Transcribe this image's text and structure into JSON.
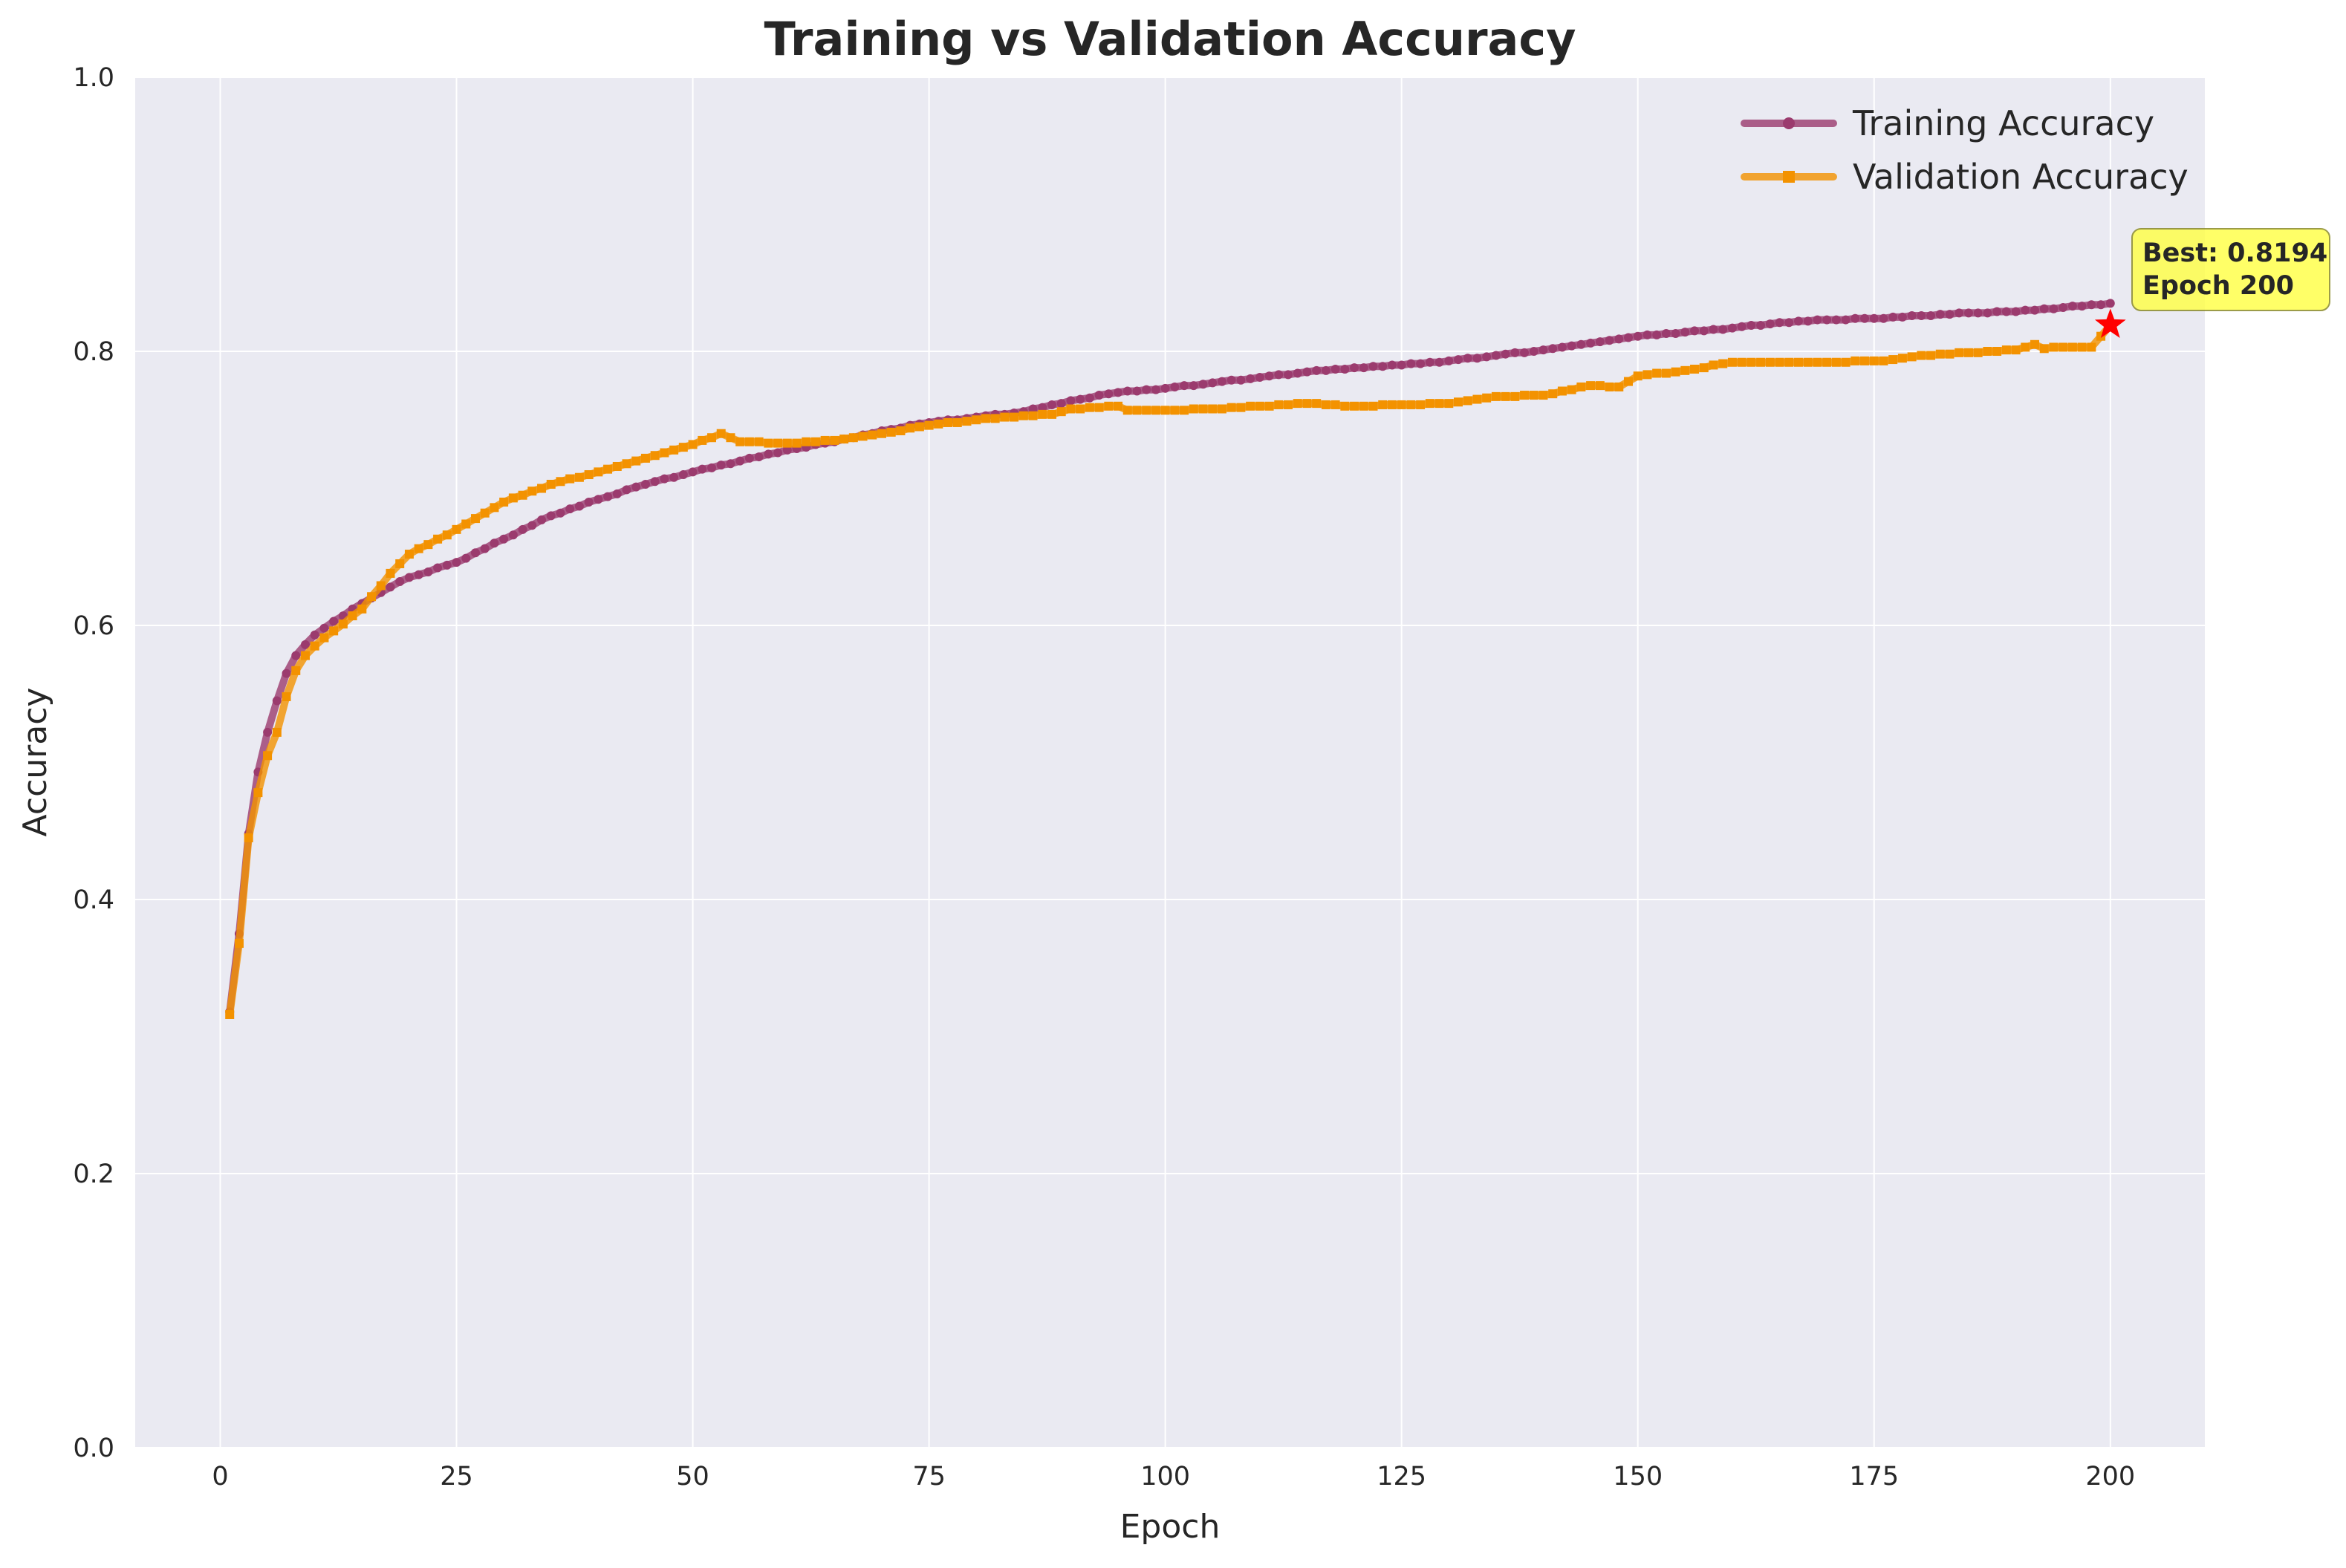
{
  "chart_data": {
    "type": "line",
    "title": "Training vs Validation Accuracy",
    "xlabel": "Epoch",
    "ylabel": "Accuracy",
    "xlim": [
      -9,
      210
    ],
    "ylim": [
      0,
      1.0
    ],
    "xticks": [
      0,
      25,
      50,
      75,
      100,
      125,
      150,
      175,
      200
    ],
    "yticks": [
      0.0,
      0.2,
      0.4,
      0.6,
      0.8,
      1.0
    ],
    "grid": true,
    "legend_position": "top-right",
    "series": [
      {
        "name": "Training Accuracy",
        "color": "#9b3b6e",
        "marker": "circle",
        "keypoints": [
          [
            1,
            0.318
          ],
          [
            2,
            0.375
          ],
          [
            3,
            0.448
          ],
          [
            4,
            0.493
          ],
          [
            5,
            0.522
          ],
          [
            6,
            0.545
          ],
          [
            7,
            0.565
          ],
          [
            8,
            0.578
          ],
          [
            9,
            0.586
          ],
          [
            10,
            0.593
          ],
          [
            12,
            0.603
          ],
          [
            15,
            0.616
          ],
          [
            18,
            0.628
          ],
          [
            20,
            0.635
          ],
          [
            25,
            0.646
          ],
          [
            30,
            0.663
          ],
          [
            35,
            0.68
          ],
          [
            40,
            0.692
          ],
          [
            45,
            0.703
          ],
          [
            50,
            0.712
          ],
          [
            55,
            0.72
          ],
          [
            60,
            0.728
          ],
          [
            65,
            0.734
          ],
          [
            70,
            0.742
          ],
          [
            75,
            0.748
          ],
          [
            80,
            0.752
          ],
          [
            85,
            0.756
          ],
          [
            90,
            0.764
          ],
          [
            95,
            0.77
          ],
          [
            100,
            0.773
          ],
          [
            105,
            0.777
          ],
          [
            110,
            0.781
          ],
          [
            115,
            0.785
          ],
          [
            120,
            0.788
          ],
          [
            125,
            0.79
          ],
          [
            130,
            0.793
          ],
          [
            135,
            0.797
          ],
          [
            140,
            0.801
          ],
          [
            145,
            0.806
          ],
          [
            150,
            0.811
          ],
          [
            155,
            0.814
          ],
          [
            160,
            0.817
          ],
          [
            165,
            0.821
          ],
          [
            170,
            0.823
          ],
          [
            175,
            0.824
          ],
          [
            180,
            0.826
          ],
          [
            185,
            0.828
          ],
          [
            190,
            0.829
          ],
          [
            195,
            0.832
          ],
          [
            200,
            0.835
          ]
        ]
      },
      {
        "name": "Validation Accuracy",
        "color": "#f39200",
        "marker": "square",
        "keypoints": [
          [
            1,
            0.316
          ],
          [
            2,
            0.368
          ],
          [
            3,
            0.445
          ],
          [
            4,
            0.478
          ],
          [
            5,
            0.505
          ],
          [
            6,
            0.522
          ],
          [
            7,
            0.548
          ],
          [
            8,
            0.567
          ],
          [
            9,
            0.578
          ],
          [
            10,
            0.585
          ],
          [
            12,
            0.596
          ],
          [
            15,
            0.612
          ],
          [
            18,
            0.638
          ],
          [
            20,
            0.652
          ],
          [
            25,
            0.67
          ],
          [
            30,
            0.69
          ],
          [
            35,
            0.703
          ],
          [
            40,
            0.712
          ],
          [
            45,
            0.722
          ],
          [
            50,
            0.732
          ],
          [
            53,
            0.74
          ],
          [
            55,
            0.734
          ],
          [
            60,
            0.733
          ],
          [
            65,
            0.735
          ],
          [
            70,
            0.74
          ],
          [
            75,
            0.746
          ],
          [
            80,
            0.75
          ],
          [
            85,
            0.753
          ],
          [
            88,
            0.754
          ],
          [
            90,
            0.758
          ],
          [
            95,
            0.76
          ],
          [
            96,
            0.757
          ],
          [
            100,
            0.757
          ],
          [
            105,
            0.758
          ],
          [
            110,
            0.76
          ],
          [
            115,
            0.762
          ],
          [
            120,
            0.76
          ],
          [
            125,
            0.761
          ],
          [
            130,
            0.762
          ],
          [
            135,
            0.767
          ],
          [
            140,
            0.768
          ],
          [
            145,
            0.775
          ],
          [
            148,
            0.774
          ],
          [
            150,
            0.782
          ],
          [
            155,
            0.786
          ],
          [
            160,
            0.792
          ],
          [
            165,
            0.792
          ],
          [
            170,
            0.792
          ],
          [
            176,
            0.793
          ],
          [
            180,
            0.797
          ],
          [
            185,
            0.799
          ],
          [
            190,
            0.801
          ],
          [
            192,
            0.805
          ],
          [
            193,
            0.802
          ],
          [
            195,
            0.803
          ],
          [
            198,
            0.803
          ],
          [
            200,
            0.819
          ]
        ]
      }
    ],
    "annotation": {
      "line1": "Best: 0.8194",
      "line2": "Epoch 200",
      "x": 200,
      "y": 0.8194,
      "marker_color": "#ff0000",
      "box_color": "#ffff4d"
    }
  }
}
